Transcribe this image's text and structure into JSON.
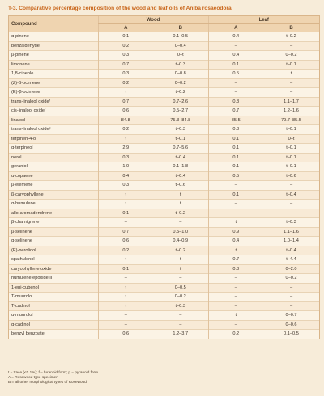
{
  "title": "T-3. Comparative percentage composition of the wood and leaf oils of Aniba rosaeodora",
  "header": {
    "compound": "Compound",
    "wood": "Wood",
    "leaf": "Leaf",
    "a": "A",
    "b": "B"
  },
  "rows": [
    {
      "name": "α-pinene",
      "wa": "0.1",
      "wb": "0.1–0.5",
      "la": "0.4",
      "lb": "t–0.2"
    },
    {
      "name": "benzaldehyde",
      "wa": "0.2",
      "wb": "0–0.4",
      "la": "–",
      "lb": "–"
    },
    {
      "name": "β-pinene",
      "wa": "0.3",
      "wb": "0–t",
      "la": "0.4",
      "lb": "0–0.2"
    },
    {
      "name": "limonene",
      "wa": "0.7",
      "wb": "t–0.3",
      "la": "0.1",
      "lb": "t–0.1"
    },
    {
      "name": "1,8-cineole",
      "wa": "0.3",
      "wb": "0–0.8",
      "la": "0.5",
      "lb": "t"
    },
    {
      "name": "(Z)-β-ocimene",
      "wa": "0.2",
      "wb": "0–0.2",
      "la": "–",
      "lb": "–"
    },
    {
      "name": "(E)-β-ocimene",
      "wa": "t",
      "wb": "t–0.2",
      "la": "–",
      "lb": "–"
    },
    {
      "name": "trans-linalool oxideᶠ",
      "wa": "0.7",
      "wb": "0.7–2.6",
      "la": "0.8",
      "lb": "1.1–1.7"
    },
    {
      "name": "cis-linalool oxideᶠ",
      "wa": "0.6",
      "wb": "0.5–2.7",
      "la": "0.7",
      "lb": "1.2–1.6"
    },
    {
      "name": "linalool",
      "wa": "84.8",
      "wb": "75.3–84.8",
      "la": "85.5",
      "lb": "79.7–85.5"
    },
    {
      "name": "trans-linalool oxideᵖ",
      "wa": "0.2",
      "wb": "t–0.3",
      "la": "0.3",
      "lb": "t–0.1"
    },
    {
      "name": "terpinen-4-ol",
      "wa": "t",
      "wb": "t–0.1",
      "la": "0.1",
      "lb": "0–t"
    },
    {
      "name": "α-terpineol",
      "wa": "2.9",
      "wb": "0.7–5.6",
      "la": "0.1",
      "lb": "t–0.1"
    },
    {
      "name": "nerol",
      "wa": "0.3",
      "wb": "t–0.4",
      "la": "0.1",
      "lb": "t–0.1"
    },
    {
      "name": "geraniol",
      "wa": "1.0",
      "wb": "0.1–1.8",
      "la": "0.1",
      "lb": "t–0.1"
    },
    {
      "name": "α-copaene",
      "wa": "0.4",
      "wb": "t–0.4",
      "la": "0.5",
      "lb": "t–0.6"
    },
    {
      "name": "β-elemene",
      "wa": "0.3",
      "wb": "t–0.6",
      "la": "–",
      "lb": "–"
    },
    {
      "name": "β-caryophyllene",
      "wa": "t",
      "wb": "t",
      "la": "0.1",
      "lb": "t–0.4"
    },
    {
      "name": "α-humulene",
      "wa": "t",
      "wb": "t",
      "la": "–",
      "lb": "–"
    },
    {
      "name": "allo-aromadendrene",
      "wa": "0.1",
      "wb": "t–0.2",
      "la": "–",
      "lb": "–"
    },
    {
      "name": "β-chamigrene",
      "wa": "–",
      "wb": "–",
      "la": "t",
      "lb": "t–0.3"
    },
    {
      "name": "β-selinene",
      "wa": "0.7",
      "wb": "0.5–1.0",
      "la": "0.9",
      "lb": "1.1–1.6"
    },
    {
      "name": "α-selinene",
      "wa": "0.6",
      "wb": "0.4–0.9",
      "la": "0.4",
      "lb": "1.0–1.4"
    },
    {
      "name": "(E)-nerolidol",
      "wa": "0.2",
      "wb": "t–0.2",
      "la": "t",
      "lb": "t–0.4"
    },
    {
      "name": "spathulenol",
      "wa": "t",
      "wb": "t",
      "la": "0.7",
      "lb": "t–4.4"
    },
    {
      "name": "caryophyllene oxide",
      "wa": "0.1",
      "wb": "t",
      "la": "0.8",
      "lb": "0–2.0"
    },
    {
      "name": "humulene epoxide II",
      "wa": "–",
      "wb": "–",
      "la": "–",
      "lb": "0–0.2"
    },
    {
      "name": "1-epi-cubenol",
      "wa": "t",
      "wb": "0–0.5",
      "la": "–",
      "lb": "–"
    },
    {
      "name": "T-muurolol",
      "wa": "t",
      "wb": "0–0.2",
      "la": "–",
      "lb": "–"
    },
    {
      "name": "T-cadinol",
      "wa": "t",
      "wb": "t–0.3",
      "la": "–",
      "lb": "–"
    },
    {
      "name": "α-muurolol",
      "wa": "–",
      "wb": "–",
      "la": "t",
      "lb": "0–0.7"
    },
    {
      "name": "α-cadinol",
      "wa": "–",
      "wb": "–",
      "la": "–",
      "lb": "0–0.6"
    },
    {
      "name": "benzyl benzoate",
      "wa": "0.6",
      "wb": "1.2–3.7",
      "la": "0.2",
      "lb": "0.1–0.5"
    }
  ],
  "footnotes": [
    "t = trace (<0.1%); f = furanoid form; p = pyranoid form",
    "A = Rosewood type specimen",
    "B = all other morphological types of Rosewood"
  ]
}
